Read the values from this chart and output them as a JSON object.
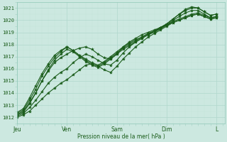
{
  "background_color": "#cce8e0",
  "grid_color_major": "#b0d8cc",
  "grid_color_minor": "#c4e4da",
  "line_color": "#1a5c1a",
  "ylabel": "Pression niveau de la mer( hPa )",
  "ylim": [
    1011.5,
    1021.5
  ],
  "yticks": [
    1012,
    1013,
    1014,
    1015,
    1016,
    1017,
    1018,
    1019,
    1020,
    1021
  ],
  "xtick_labels": [
    "Jeu",
    "Ven",
    "Sam",
    "Dim",
    "L"
  ],
  "xtick_positions": [
    0,
    24,
    48,
    72,
    96
  ],
  "xlim": [
    0,
    100
  ],
  "series": [
    {
      "pts": [
        [
          0,
          1012.2
        ],
        [
          3,
          1012.5
        ],
        [
          6,
          1013.2
        ],
        [
          9,
          1014.0
        ],
        [
          12,
          1015.0
        ],
        [
          15,
          1015.8
        ],
        [
          18,
          1016.5
        ],
        [
          21,
          1016.9
        ],
        [
          24,
          1017.2
        ],
        [
          27,
          1017.5
        ],
        [
          30,
          1017.7
        ],
        [
          33,
          1017.8
        ],
        [
          36,
          1017.6
        ],
        [
          39,
          1017.2
        ],
        [
          42,
          1016.9
        ],
        [
          45,
          1016.8
        ],
        [
          48,
          1017.2
        ],
        [
          51,
          1017.8
        ],
        [
          54,
          1018.2
        ],
        [
          57,
          1018.5
        ],
        [
          60,
          1018.8
        ],
        [
          63,
          1019.0
        ],
        [
          66,
          1019.2
        ],
        [
          69,
          1019.4
        ],
        [
          72,
          1019.6
        ],
        [
          75,
          1019.9
        ],
        [
          78,
          1020.1
        ],
        [
          81,
          1020.3
        ],
        [
          84,
          1020.5
        ],
        [
          87,
          1020.6
        ],
        [
          90,
          1020.4
        ],
        [
          93,
          1020.2
        ],
        [
          96,
          1020.3
        ]
      ]
    },
    {
      "pts": [
        [
          0,
          1012.1
        ],
        [
          3,
          1012.3
        ],
        [
          6,
          1012.8
        ],
        [
          9,
          1013.4
        ],
        [
          12,
          1014.1
        ],
        [
          15,
          1014.8
        ],
        [
          18,
          1015.3
        ],
        [
          21,
          1015.7
        ],
        [
          24,
          1016.0
        ],
        [
          27,
          1016.5
        ],
        [
          30,
          1016.9
        ],
        [
          33,
          1017.2
        ],
        [
          36,
          1017.0
        ],
        [
          39,
          1016.7
        ],
        [
          42,
          1016.4
        ],
        [
          45,
          1016.3
        ],
        [
          48,
          1016.7
        ],
        [
          51,
          1017.3
        ],
        [
          54,
          1017.8
        ],
        [
          57,
          1018.2
        ],
        [
          60,
          1018.5
        ],
        [
          63,
          1018.8
        ],
        [
          66,
          1019.1
        ],
        [
          69,
          1019.3
        ],
        [
          72,
          1019.6
        ],
        [
          75,
          1019.8
        ],
        [
          78,
          1020.0
        ],
        [
          81,
          1020.2
        ],
        [
          84,
          1020.4
        ],
        [
          87,
          1020.5
        ],
        [
          90,
          1020.3
        ],
        [
          93,
          1020.1
        ],
        [
          96,
          1020.2
        ]
      ]
    },
    {
      "pts": [
        [
          0,
          1012.0
        ],
        [
          3,
          1012.2
        ],
        [
          6,
          1012.5
        ],
        [
          9,
          1013.0
        ],
        [
          12,
          1013.5
        ],
        [
          15,
          1014.0
        ],
        [
          18,
          1014.4
        ],
        [
          21,
          1014.8
        ],
        [
          24,
          1015.1
        ],
        [
          27,
          1015.5
        ],
        [
          30,
          1015.9
        ],
        [
          33,
          1016.3
        ],
        [
          36,
          1016.4
        ],
        [
          39,
          1016.2
        ],
        [
          42,
          1015.9
        ],
        [
          45,
          1015.7
        ],
        [
          48,
          1016.2
        ],
        [
          51,
          1016.8
        ],
        [
          54,
          1017.3
        ],
        [
          57,
          1017.8
        ],
        [
          60,
          1018.2
        ],
        [
          63,
          1018.6
        ],
        [
          66,
          1018.9
        ],
        [
          69,
          1019.2
        ],
        [
          72,
          1019.5
        ],
        [
          75,
          1019.8
        ],
        [
          78,
          1020.0
        ],
        [
          81,
          1020.2
        ],
        [
          84,
          1020.4
        ],
        [
          87,
          1020.5
        ],
        [
          90,
          1020.3
        ],
        [
          93,
          1020.1
        ],
        [
          96,
          1020.2
        ]
      ]
    },
    {
      "pts": [
        [
          0,
          1012.3
        ],
        [
          3,
          1012.6
        ],
        [
          6,
          1013.4
        ],
        [
          9,
          1014.3
        ],
        [
          12,
          1015.4
        ],
        [
          15,
          1016.2
        ],
        [
          18,
          1016.9
        ],
        [
          21,
          1017.4
        ],
        [
          24,
          1017.8
        ],
        [
          27,
          1017.5
        ],
        [
          30,
          1017.1
        ],
        [
          33,
          1016.8
        ],
        [
          36,
          1016.5
        ],
        [
          39,
          1016.3
        ],
        [
          42,
          1016.6
        ],
        [
          45,
          1017.0
        ],
        [
          48,
          1017.4
        ],
        [
          51,
          1017.8
        ],
        [
          54,
          1018.1
        ],
        [
          57,
          1018.4
        ],
        [
          60,
          1018.6
        ],
        [
          63,
          1018.9
        ],
        [
          66,
          1019.1
        ],
        [
          69,
          1019.4
        ],
        [
          72,
          1019.7
        ],
        [
          75,
          1020.1
        ],
        [
          78,
          1020.5
        ],
        [
          81,
          1020.8
        ],
        [
          84,
          1021.0
        ],
        [
          87,
          1021.0
        ],
        [
          90,
          1020.7
        ],
        [
          93,
          1020.4
        ],
        [
          96,
          1020.5
        ]
      ]
    },
    {
      "pts": [
        [
          0,
          1012.4
        ],
        [
          3,
          1012.7
        ],
        [
          6,
          1013.6
        ],
        [
          9,
          1014.6
        ],
        [
          12,
          1015.6
        ],
        [
          15,
          1016.4
        ],
        [
          18,
          1017.1
        ],
        [
          21,
          1017.5
        ],
        [
          24,
          1017.8
        ],
        [
          27,
          1017.5
        ],
        [
          30,
          1017.1
        ],
        [
          33,
          1016.7
        ],
        [
          36,
          1016.4
        ],
        [
          39,
          1016.2
        ],
        [
          42,
          1016.5
        ],
        [
          45,
          1016.9
        ],
        [
          48,
          1017.3
        ],
        [
          51,
          1017.7
        ],
        [
          54,
          1018.0
        ],
        [
          57,
          1018.3
        ],
        [
          60,
          1018.6
        ],
        [
          63,
          1018.9
        ],
        [
          66,
          1019.1
        ],
        [
          69,
          1019.4
        ],
        [
          72,
          1019.7
        ],
        [
          75,
          1020.1
        ],
        [
          78,
          1020.5
        ],
        [
          81,
          1020.9
        ],
        [
          84,
          1021.1
        ],
        [
          87,
          1021.0
        ],
        [
          90,
          1020.7
        ],
        [
          93,
          1020.4
        ],
        [
          96,
          1020.5
        ]
      ]
    },
    {
      "pts": [
        [
          0,
          1012.2
        ],
        [
          3,
          1012.4
        ],
        [
          6,
          1013.1
        ],
        [
          9,
          1014.0
        ],
        [
          12,
          1015.0
        ],
        [
          15,
          1015.9
        ],
        [
          18,
          1016.7
        ],
        [
          21,
          1017.2
        ],
        [
          24,
          1017.6
        ],
        [
          27,
          1017.4
        ],
        [
          30,
          1017.0
        ],
        [
          33,
          1016.6
        ],
        [
          36,
          1016.3
        ],
        [
          39,
          1016.1
        ],
        [
          42,
          1016.4
        ],
        [
          45,
          1016.8
        ],
        [
          48,
          1017.2
        ],
        [
          51,
          1017.6
        ],
        [
          54,
          1017.9
        ],
        [
          57,
          1018.2
        ],
        [
          60,
          1018.5
        ],
        [
          63,
          1018.8
        ],
        [
          66,
          1019.0
        ],
        [
          69,
          1019.3
        ],
        [
          72,
          1019.6
        ],
        [
          75,
          1020.0
        ],
        [
          78,
          1020.3
        ],
        [
          81,
          1020.6
        ],
        [
          84,
          1020.8
        ],
        [
          87,
          1020.8
        ],
        [
          90,
          1020.5
        ],
        [
          93,
          1020.2
        ],
        [
          96,
          1020.3
        ]
      ]
    }
  ]
}
